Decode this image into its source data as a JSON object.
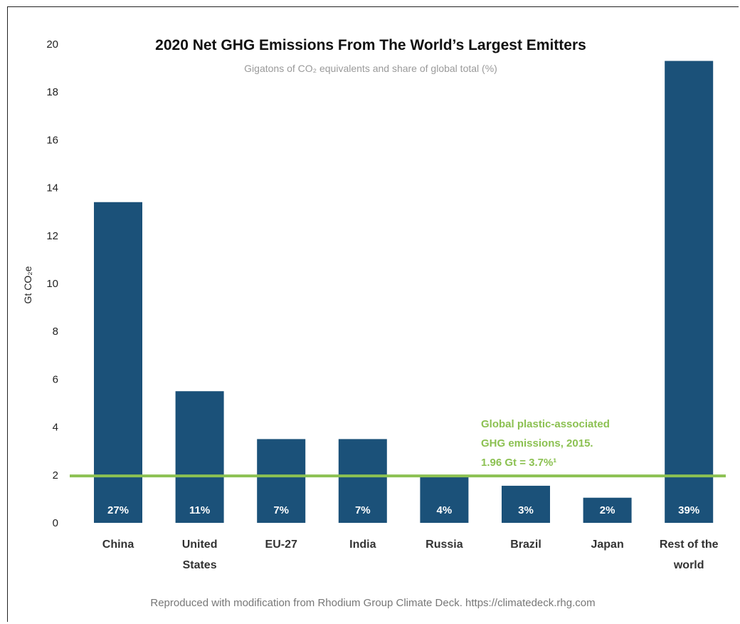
{
  "chart_data": {
    "type": "bar",
    "title": "2020 Net GHG Emissions  From The World’s Largest Emitters",
    "subtitle": "Gigatons of CO₂ equivalents and share of global total (%)",
    "ylabel": "Gt CO₂e",
    "xlabel": "",
    "ylim": [
      0,
      20
    ],
    "yticks": [
      0,
      2,
      4,
      6,
      8,
      10,
      12,
      14,
      16,
      18,
      20
    ],
    "categories": [
      [
        "China"
      ],
      [
        "United",
        "States"
      ],
      [
        "EU-27"
      ],
      [
        "India"
      ],
      [
        "Russia"
      ],
      [
        "Brazil"
      ],
      [
        "Japan"
      ],
      [
        "Rest of the",
        "world"
      ]
    ],
    "values": [
      13.4,
      5.5,
      3.5,
      3.5,
      2.0,
      1.55,
      1.05,
      19.3
    ],
    "data_labels": [
      "27%",
      "11%",
      "7%",
      "7%",
      "4%",
      "3%",
      "2%",
      "39%"
    ],
    "bar_color": "#1b5179",
    "grid": false,
    "legend": "none",
    "reference_line": {
      "value": 1.96,
      "color": "#8cc152",
      "annotation": [
        "Global plastic-associated",
        "GHG  emissions, 2015.",
        "1.96 Gt = 3.7%¹"
      ]
    }
  },
  "source": "Reproduced with modification from Rhodium Group  Climate Deck. https://climatedeck.rhg.com"
}
